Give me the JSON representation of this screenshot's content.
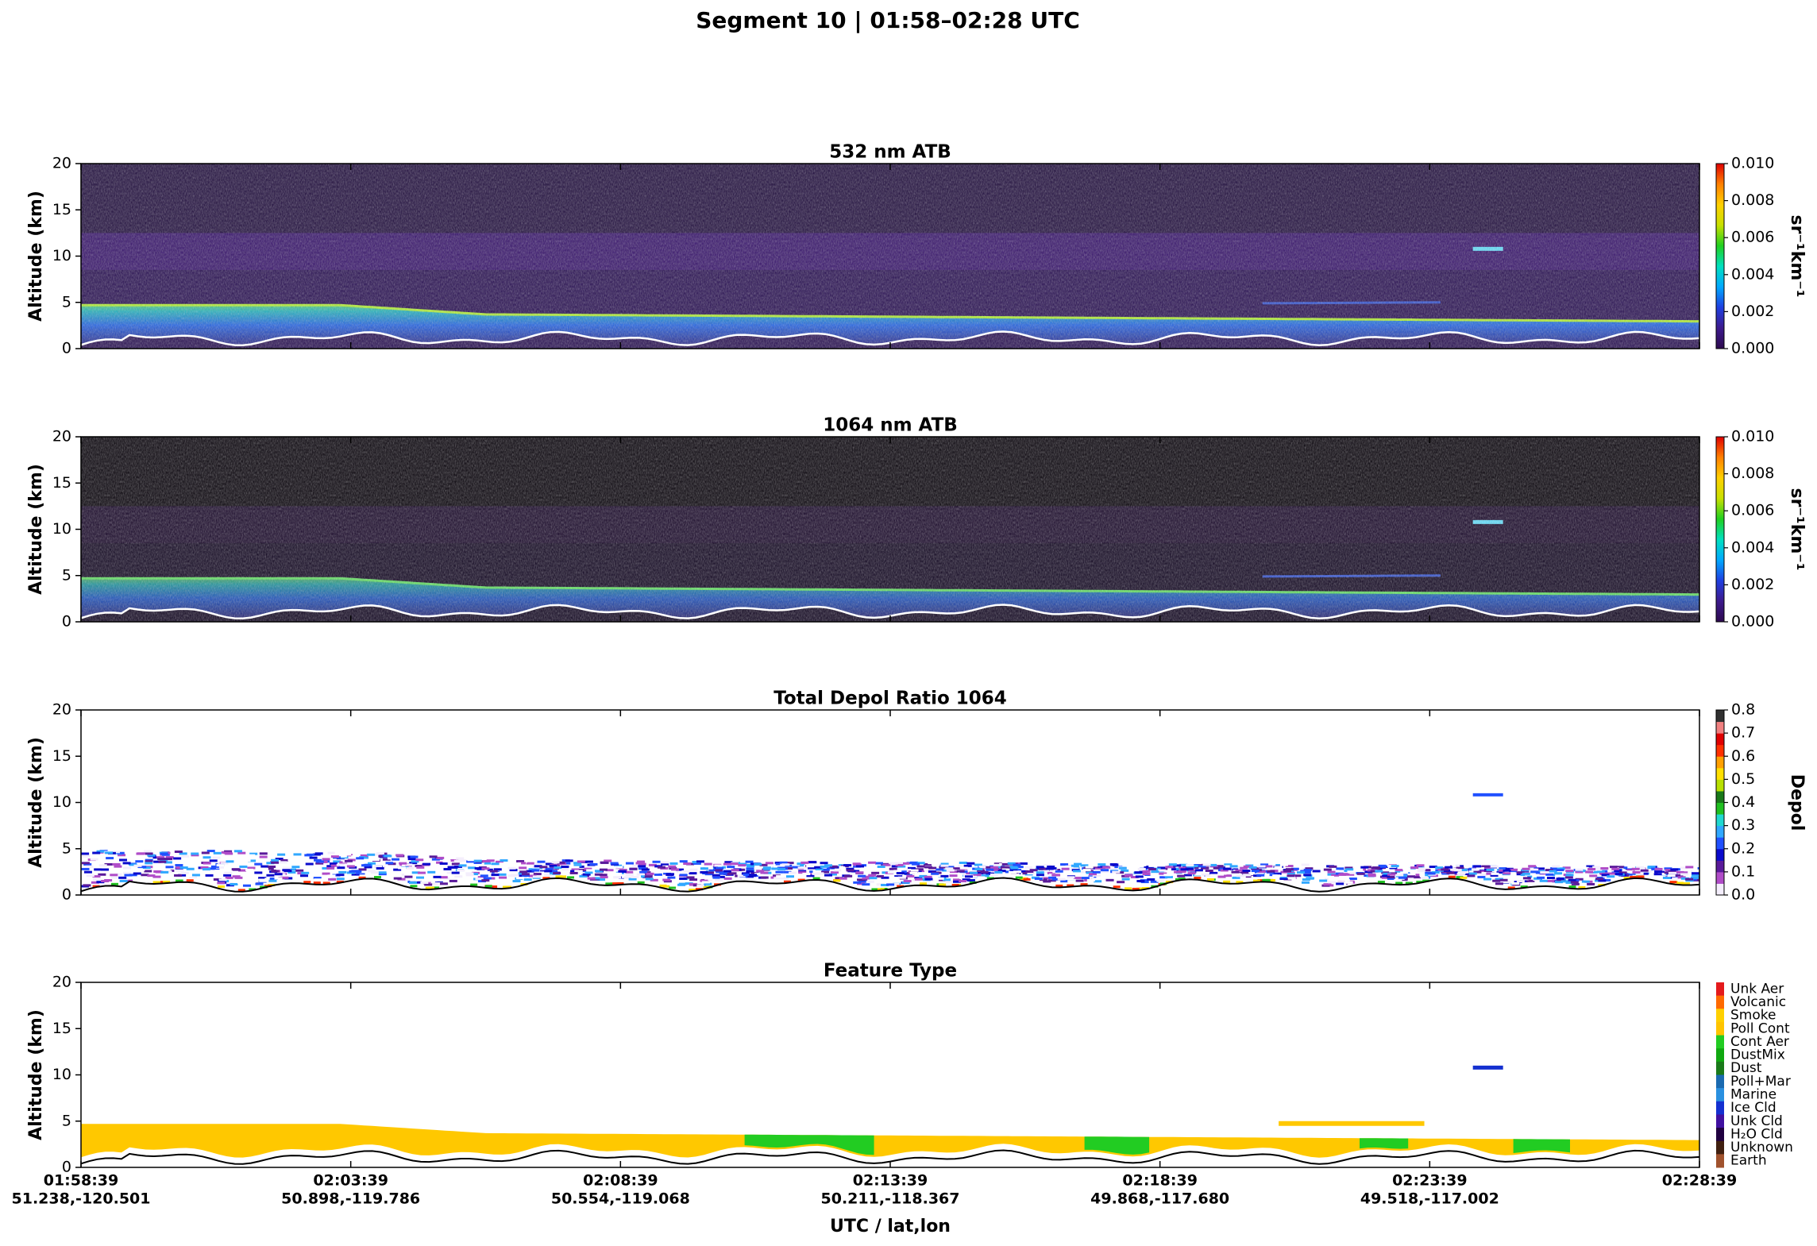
{
  "title": "Segment 10  |  01:58–02:28 UTC",
  "xlabel": "UTC / lat,lon",
  "xticks": [
    {
      "time": "01:58:39",
      "latlon": "51.238,-120.501"
    },
    {
      "time": "02:03:39",
      "latlon": "50.898,-119.786"
    },
    {
      "time": "02:08:39",
      "latlon": "50.554,-119.068"
    },
    {
      "time": "02:13:39",
      "latlon": "50.211,-118.367"
    },
    {
      "time": "02:18:39",
      "latlon": "49.868,-117.680"
    },
    {
      "time": "02:23:39",
      "latlon": "49.518,-117.002"
    },
    {
      "time": "02:28:39",
      "latlon": ""
    }
  ],
  "chart_data": [
    {
      "type": "heatmap",
      "title": "532 nm ATB",
      "ylabel": "Altitude (km)",
      "ylim": [
        0,
        20
      ],
      "yticks": [
        0,
        5,
        10,
        15,
        20
      ],
      "background": "#1e0b3c",
      "colorbar": {
        "label": "sr⁻¹km⁻¹",
        "clim": [
          0,
          0.01
        ],
        "ticks": [
          {
            "value": 0,
            "label": "0.000"
          },
          {
            "value": 0.002,
            "label": "0.002"
          },
          {
            "value": 0.004,
            "label": "0.004"
          },
          {
            "value": 0.006,
            "label": "0.006"
          },
          {
            "value": 0.008,
            "label": "0.008"
          },
          {
            "value": 0.01,
            "label": "0.010"
          }
        ],
        "colors": [
          "#2d0a4e",
          "#3d1a8c",
          "#1f3fe0",
          "#00a8ff",
          "#00e0c0",
          "#20d020",
          "#c8e000",
          "#ffd000",
          "#ff8000",
          "#e00000"
        ]
      }
    },
    {
      "type": "heatmap",
      "title": "1064 nm ATB",
      "ylabel": "Altitude (km)",
      "ylim": [
        0,
        20
      ],
      "yticks": [
        0,
        5,
        10,
        15,
        20
      ],
      "background": "#050008",
      "colorbar": {
        "label": "sr⁻¹km⁻¹",
        "clim": [
          0,
          0.01
        ],
        "ticks": [
          {
            "value": 0,
            "label": "0.000"
          },
          {
            "value": 0.002,
            "label": "0.002"
          },
          {
            "value": 0.004,
            "label": "0.004"
          },
          {
            "value": 0.006,
            "label": "0.006"
          },
          {
            "value": 0.008,
            "label": "0.008"
          },
          {
            "value": 0.01,
            "label": "0.010"
          }
        ],
        "colors": [
          "#2d0a4e",
          "#3d1a8c",
          "#1f3fe0",
          "#00a8ff",
          "#00e0c0",
          "#20d020",
          "#c8e000",
          "#ffd000",
          "#ff8000",
          "#e00000"
        ]
      }
    },
    {
      "type": "depol",
      "title": "Total Depol Ratio 1064",
      "ylabel": "Altitude (km)",
      "ylim": [
        0,
        20
      ],
      "yticks": [
        0,
        5,
        10,
        15,
        20
      ],
      "background": "#ffffff",
      "colorbar": {
        "label": "Depol",
        "clim": [
          0,
          0.8
        ],
        "ticks": [
          {
            "value": 0,
            "label": "0.0"
          },
          0.1,
          0.2,
          0.3,
          0.4,
          0.5,
          0.6,
          0.7,
          0.8
        ],
        "colors": [
          "#f4eefc",
          "#b04cc8",
          "#5a1a9a",
          "#0a0acc",
          "#2050ff",
          "#30a8ff",
          "#20d8d0",
          "#20c020",
          "#187818",
          "#b8e000",
          "#ffe000",
          "#ffa000",
          "#ff3000",
          "#e00000",
          "#f08080",
          "#303030"
        ]
      }
    },
    {
      "type": "feature",
      "title": "Feature Type",
      "ylabel": "Altitude (km)",
      "ylim": [
        0,
        20
      ],
      "yticks": [
        0,
        5,
        10,
        15,
        20
      ],
      "background": "#ffffff",
      "colorbar": {
        "categories": [
          "Unk Aer",
          "Volcanic",
          "Smoke",
          "Poll Cont",
          "Cont Aer",
          "DustMix",
          "Dust",
          "Poll+Mar",
          "Marine",
          "Ice Cld",
          "Unk Cld",
          "H₂O Cld",
          "Unknown",
          "Earth"
        ],
        "colors": [
          "#e41a1c",
          "#ff6a00",
          "#ffd000",
          "#ffc400",
          "#22cc22",
          "#10a810",
          "#1a7a1a",
          "#1a6ab0",
          "#2a90e0",
          "#1430d0",
          "#4010a0",
          "#200040",
          "#402010",
          "#a0522d"
        ]
      }
    }
  ]
}
